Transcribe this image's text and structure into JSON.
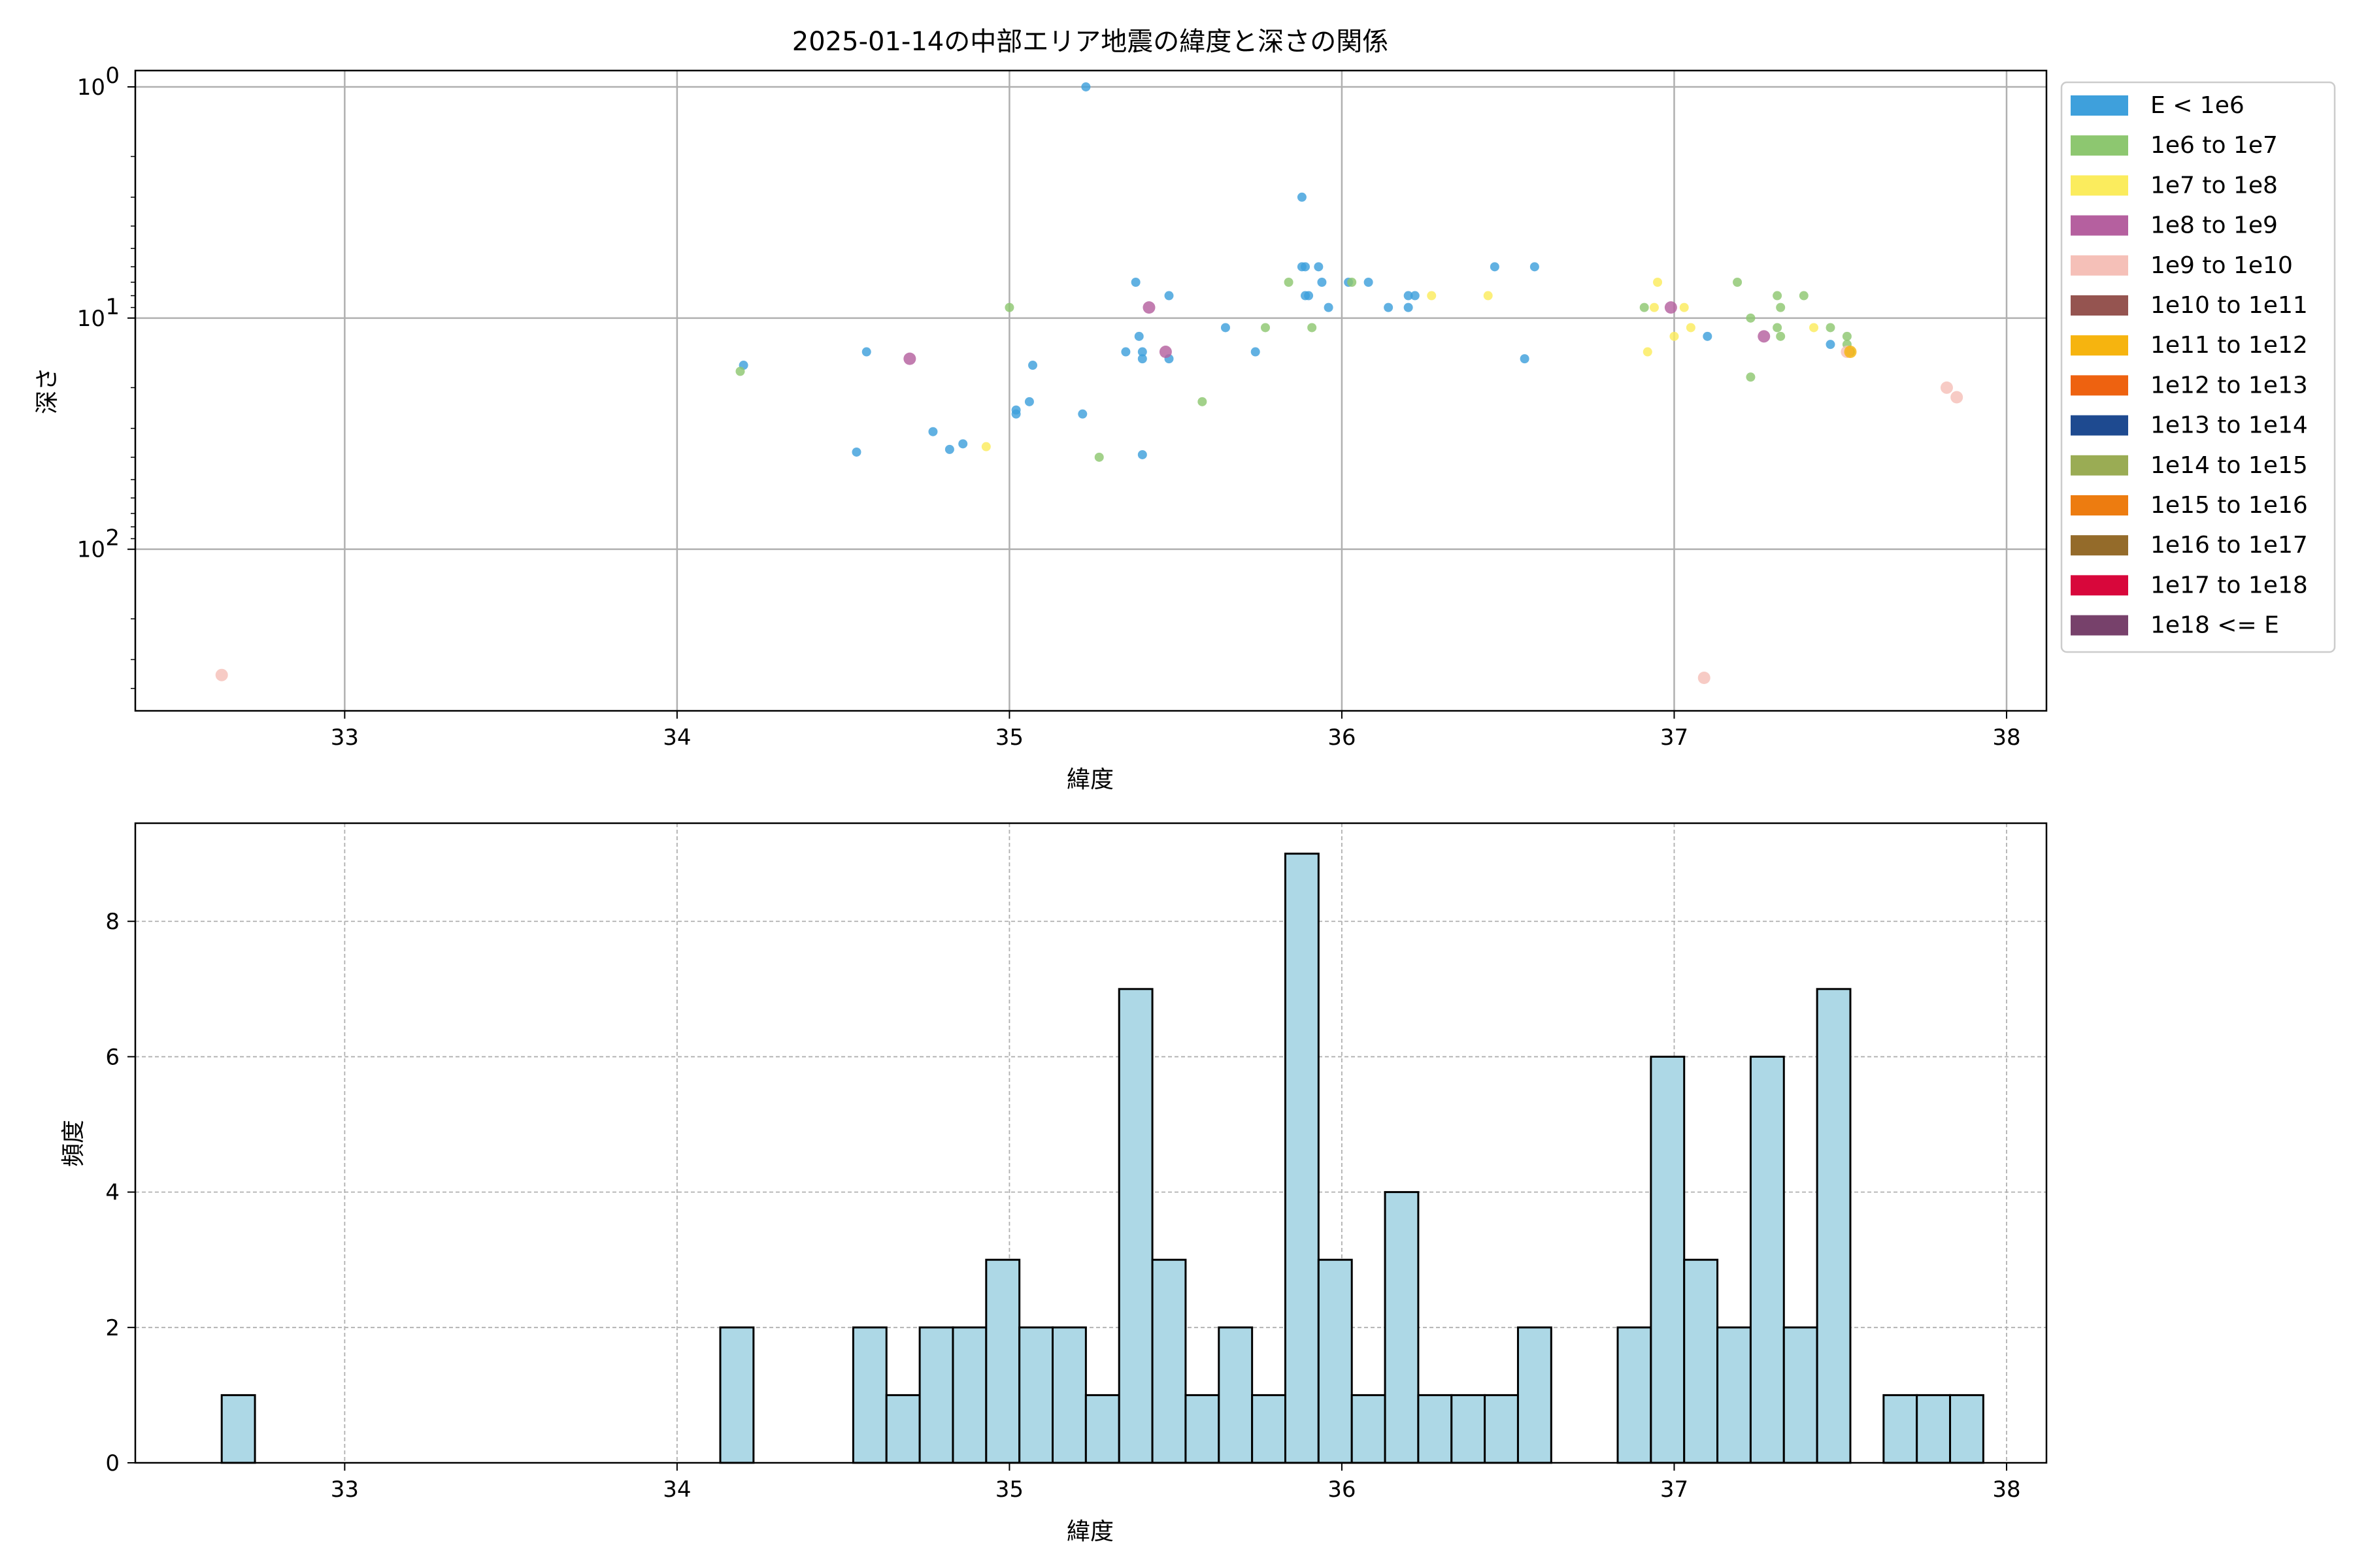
{
  "chart_data": [
    {
      "type": "scatter",
      "title": "2025-01-14の中部エリア地震の緯度と深さの関係",
      "xlabel": "緯度",
      "ylabel": "深さ",
      "xlim": [
        32.37,
        38.12
      ],
      "ylim": [
        500,
        0.85
      ],
      "yscale": "log",
      "y_inverted": true,
      "grid": true,
      "xticks": [
        33,
        34,
        35,
        36,
        37,
        38
      ],
      "xtick_labels": [
        "33",
        "34",
        "35",
        "36",
        "37",
        "38"
      ],
      "yticks": [
        1,
        10,
        100
      ],
      "ytick_labels": [
        "10^0",
        "10^1",
        "10^2"
      ],
      "legend": {
        "placement": "outside-right-top",
        "entries": [
          {
            "label": "E < 1e6",
            "color": "#3ea0dc"
          },
          {
            "label": "1e6 to 1e7",
            "color": "#8dc770"
          },
          {
            "label": "1e7 to 1e8",
            "color": "#fbec5d"
          },
          {
            "label": "1e8 to 1e9",
            "color": "#b5609f"
          },
          {
            "label": "1e9 to 1e10",
            "color": "#f5c0b8"
          },
          {
            "label": "1e10 to 1e11",
            "color": "#955450"
          },
          {
            "label": "1e11 to 1e12",
            "color": "#f6b40f"
          },
          {
            "label": "1e12 to 1e13",
            "color": "#ee6210"
          },
          {
            "label": "1e13 to 1e14",
            "color": "#1e4a90"
          },
          {
            "label": "1e14 to 1e15",
            "color": "#9aac54"
          },
          {
            "label": "1e15 to 1e16",
            "color": "#ed7c10"
          },
          {
            "label": "1e16 to 1e17",
            "color": "#946b2a"
          },
          {
            "label": "1e17 to 1e18",
            "color": "#d8073b"
          },
          {
            "label": "1e18 <= E",
            "color": "#77416b"
          }
        ]
      },
      "series": [
        {
          "class": 0,
          "points": [
            [
              35.23,
              1.0
            ],
            [
              35.88,
              3.0
            ],
            [
              35.88,
              6.0
            ],
            [
              35.89,
              6.0
            ],
            [
              35.93,
              6.0
            ],
            [
              35.94,
              7.0
            ],
            [
              35.89,
              8.0
            ],
            [
              35.9,
              8.0
            ],
            [
              35.96,
              9.0
            ],
            [
              36.02,
              7.0
            ],
            [
              36.08,
              7.0
            ],
            [
              36.14,
              9.0
            ],
            [
              36.2,
              8.0
            ],
            [
              36.2,
              9.0
            ],
            [
              36.22,
              8.0
            ],
            [
              36.46,
              6.0
            ],
            [
              36.58,
              6.0
            ],
            [
              36.55,
              15.0
            ],
            [
              35.38,
              7.0
            ],
            [
              35.48,
              8.0
            ],
            [
              35.65,
              11.0
            ],
            [
              35.74,
              14.0
            ],
            [
              35.39,
              12.0
            ],
            [
              35.35,
              14.0
            ],
            [
              35.4,
              14.0
            ],
            [
              35.4,
              15.0
            ],
            [
              35.48,
              15.0
            ],
            [
              34.2,
              16.0
            ],
            [
              34.57,
              14.0
            ],
            [
              35.07,
              16.0
            ],
            [
              35.06,
              23.0
            ],
            [
              35.02,
              25.0
            ],
            [
              35.02,
              26.0
            ],
            [
              35.22,
              26.0
            ],
            [
              34.77,
              31.0
            ],
            [
              34.86,
              35.0
            ],
            [
              34.82,
              37.0
            ],
            [
              34.54,
              38.0
            ],
            [
              35.4,
              39.0
            ],
            [
              37.1,
              12.0
            ],
            [
              37.47,
              13.0
            ]
          ]
        },
        {
          "class": 1,
          "points": [
            [
              35.0,
              9.0
            ],
            [
              35.84,
              7.0
            ],
            [
              36.03,
              7.0
            ],
            [
              35.77,
              11.0
            ],
            [
              35.91,
              11.0
            ],
            [
              34.19,
              17.0
            ],
            [
              35.58,
              23.0
            ],
            [
              35.27,
              40.0
            ],
            [
              36.91,
              9.0
            ],
            [
              37.19,
              7.0
            ],
            [
              37.23,
              10.0
            ],
            [
              37.31,
              8.0
            ],
            [
              37.32,
              9.0
            ],
            [
              37.39,
              8.0
            ],
            [
              37.31,
              11.0
            ],
            [
              37.32,
              12.0
            ],
            [
              37.47,
              11.0
            ],
            [
              37.52,
              12.0
            ],
            [
              37.52,
              13.0
            ],
            [
              37.53,
              14.0
            ],
            [
              37.23,
              18.0
            ]
          ]
        },
        {
          "class": 2,
          "points": [
            [
              34.93,
              36.0
            ],
            [
              36.27,
              8.0
            ],
            [
              36.44,
              8.0
            ],
            [
              36.95,
              7.0
            ],
            [
              36.94,
              9.0
            ],
            [
              37.03,
              9.0
            ],
            [
              37.0,
              12.0
            ],
            [
              37.05,
              11.0
            ],
            [
              36.92,
              14.0
            ],
            [
              37.42,
              11.0
            ]
          ]
        },
        {
          "class": 3,
          "points": [
            [
              35.42,
              9.0
            ],
            [
              35.47,
              14.0
            ],
            [
              34.7,
              15.0
            ],
            [
              36.99,
              9.0
            ],
            [
              37.27,
              12.0
            ]
          ]
        },
        {
          "class": 4,
          "points": [
            [
              32.63,
              350.0
            ],
            [
              37.09,
              360.0
            ],
            [
              37.82,
              20.0
            ],
            [
              37.85,
              22.0
            ],
            [
              37.52,
              14.0
            ]
          ]
        },
        {
          "class": 6,
          "points": [
            [
              37.53,
              14.0
            ]
          ]
        }
      ]
    },
    {
      "type": "bar",
      "title": "",
      "xlabel": "緯度",
      "ylabel": "頻度",
      "xlim": [
        32.37,
        38.12
      ],
      "ylim": [
        0,
        9.45
      ],
      "grid": true,
      "bar_color": "#add8e6",
      "bar_edge_color": "#000000",
      "xticks": [
        33,
        34,
        35,
        36,
        37,
        38
      ],
      "xtick_labels": [
        "33",
        "34",
        "35",
        "36",
        "37",
        "38"
      ],
      "yticks": [
        0,
        2,
        4,
        6,
        8
      ],
      "ytick_labels": [
        "0",
        "2",
        "4",
        "6",
        "8"
      ],
      "bin_width": 0.1,
      "bins_start": [
        32.63,
        34.13,
        34.53,
        34.63,
        34.73,
        34.83,
        34.93,
        35.03,
        35.13,
        35.23,
        35.33,
        35.43,
        35.53,
        35.63,
        35.73,
        35.83,
        35.93,
        36.03,
        36.13,
        36.23,
        36.33,
        36.43,
        36.53,
        36.83,
        36.93,
        37.03,
        37.13,
        37.23,
        37.33,
        37.43,
        37.63,
        37.73,
        37.83
      ],
      "values": [
        1,
        2,
        2,
        1,
        2,
        2,
        3,
        2,
        2,
        1,
        7,
        3,
        1,
        2,
        1,
        9,
        3,
        1,
        4,
        1,
        1,
        1,
        2,
        2,
        6,
        3,
        2,
        6,
        2,
        7,
        1,
        1,
        1
      ]
    }
  ]
}
